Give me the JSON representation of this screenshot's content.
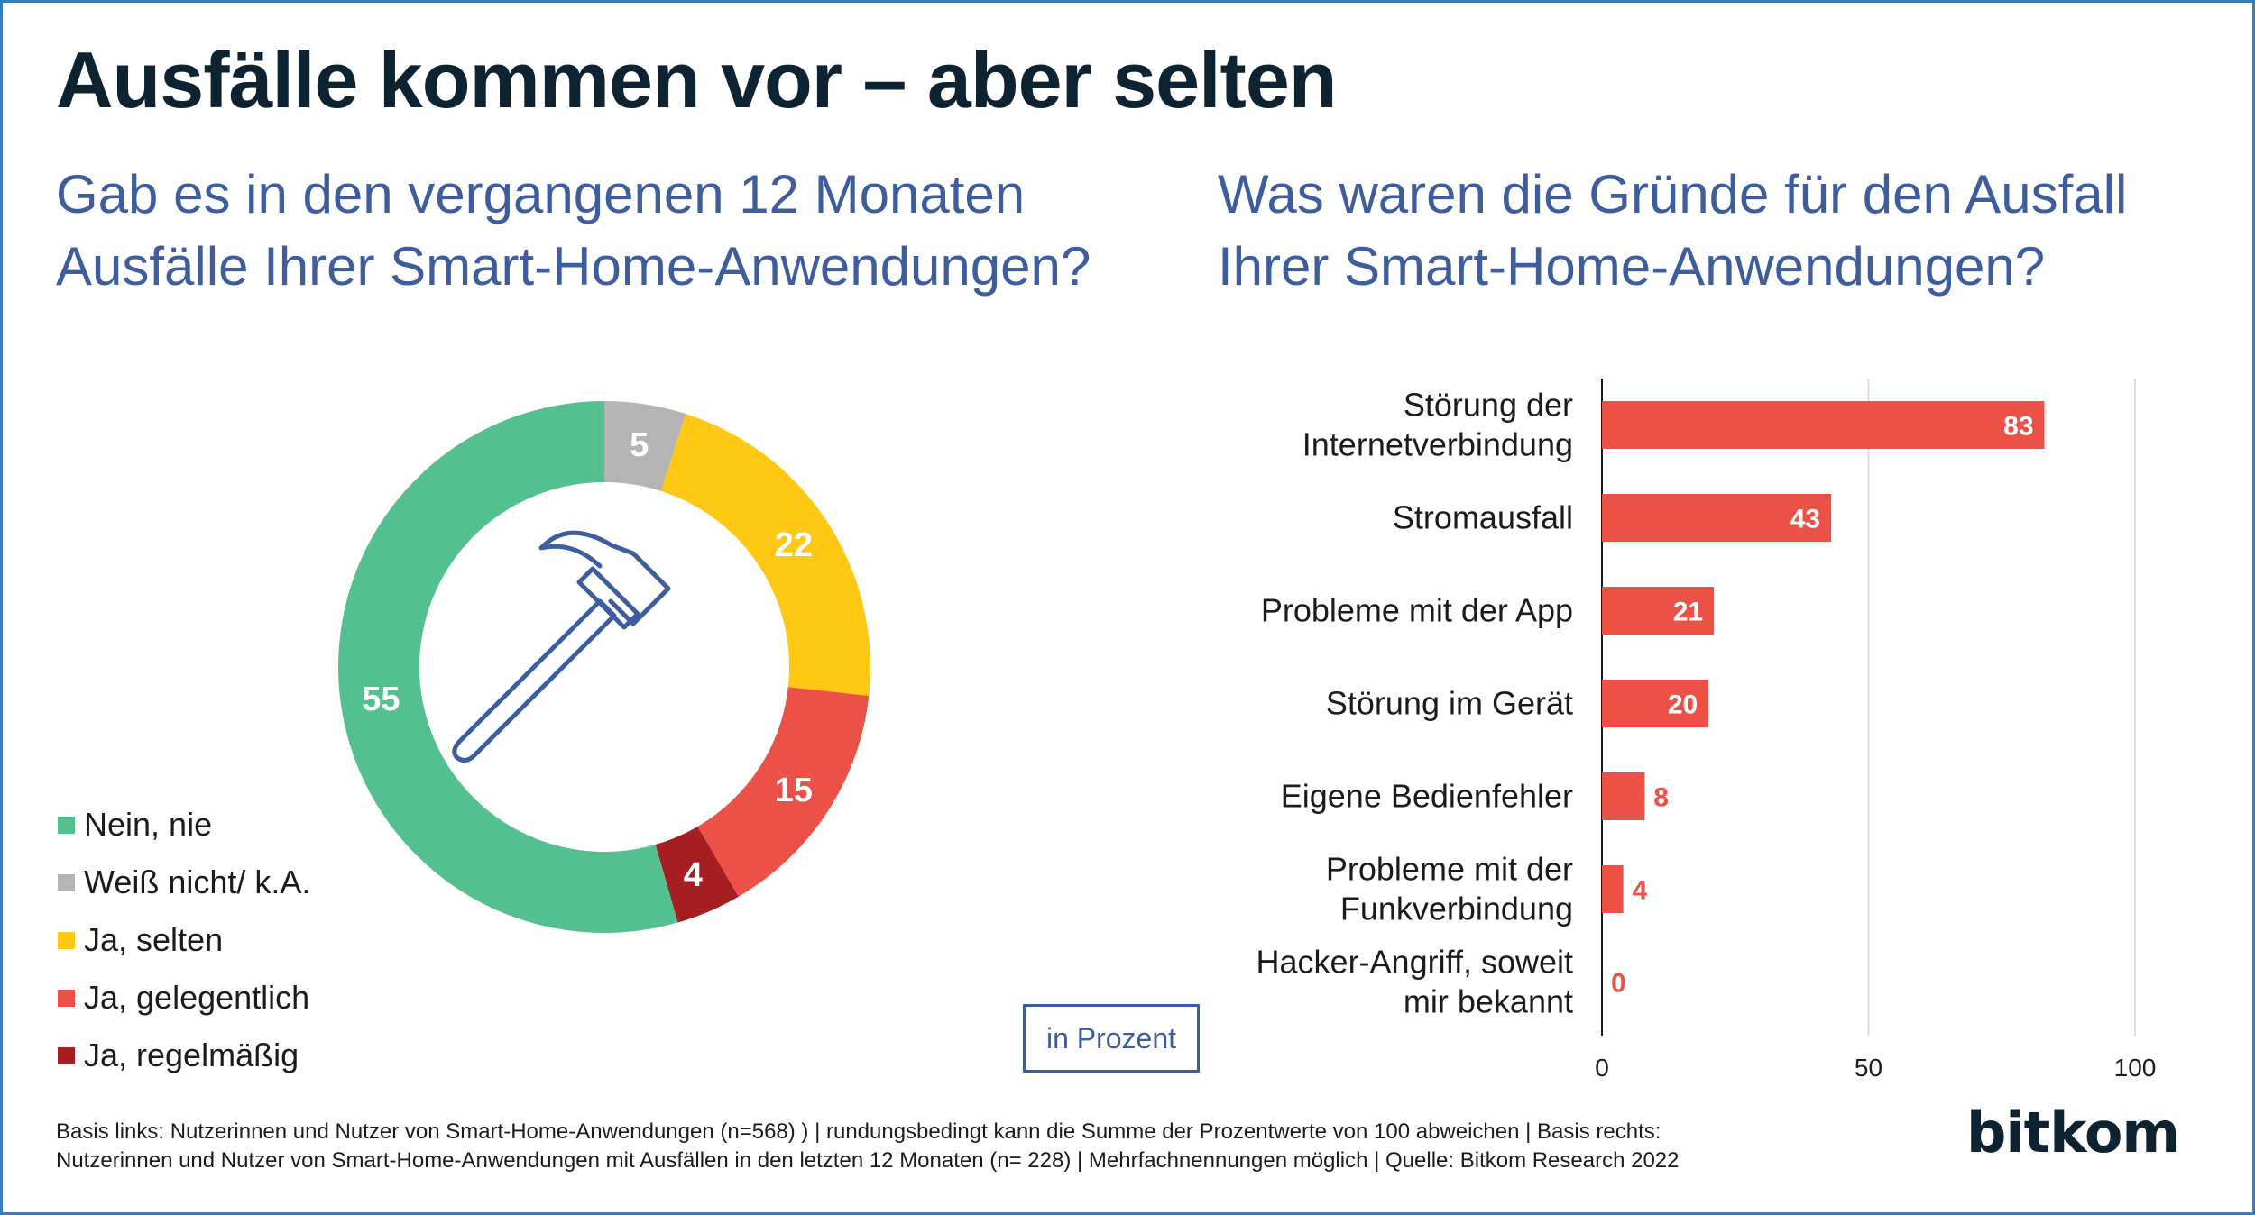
{
  "title": "Ausfälle kommen vor – aber selten",
  "left_question": [
    "Gab es in den vergangenen 12 Monaten",
    "Ausfälle Ihrer Smart-Home-Anwendungen?"
  ],
  "right_question": [
    "Was waren die Gründe für den Ausfall",
    "Ihrer Smart-Home-Anwendungen?"
  ],
  "unit_label": "in Prozent",
  "footnote": [
    "Basis links: Nutzerinnen und Nutzer von Smart-Home-Anwendungen (n=568) ) | rundungsbedingt kann die Summe der Prozentwerte von 100 abweichen | Basis rechts:",
    "Nutzerinnen und Nutzer von Smart-Home-Anwendungen mit Ausfällen in den letzten 12 Monaten (n= 228) | Mehrfachnennungen möglich | Quelle: Bitkom Research 2022"
  ],
  "brand": "bitkom",
  "center_icon": "hammer-icon",
  "colors": {
    "title": "#0e2332",
    "question": "#3e5d9e",
    "bar": "#ec5148",
    "green": "#55c08f",
    "grey": "#b4b4b4",
    "yellow": "#fec814",
    "red": "#ec5148",
    "darkred": "#a41e22",
    "frame": "#3a7bbf"
  },
  "chart_data": [
    {
      "type": "pie",
      "variant": "donut",
      "title": "Gab es in den vergangenen 12 Monaten Ausfälle Ihrer Smart-Home-Anwendungen?",
      "legend_position": "bottom-left",
      "slices": [
        {
          "label": "Weiß nicht/ k.A.",
          "value": 5,
          "color": "#b4b4b4"
        },
        {
          "label": "Ja, selten",
          "value": 22,
          "color": "#fec814"
        },
        {
          "label": "Ja, gelegentlich",
          "value": 15,
          "color": "#ec5148"
        },
        {
          "label": "Ja, regelmäßig",
          "value": 4,
          "color": "#a41e22"
        },
        {
          "label": "Nein, nie",
          "value": 55,
          "color": "#55c08f"
        }
      ],
      "legend_order": [
        "Nein, nie",
        "Weiß nicht/ k.A.",
        "Ja, selten",
        "Ja, gelegentlich",
        "Ja, regelmäßig"
      ]
    },
    {
      "type": "bar",
      "orientation": "horizontal",
      "title": "Was waren die Gründe für den Ausfall Ihrer Smart-Home-Anwendungen?",
      "categories": [
        [
          "Störung der",
          "Internetverbindung"
        ],
        [
          "Stromausfall"
        ],
        [
          "Probleme mit der App"
        ],
        [
          "Störung im Gerät"
        ],
        [
          "Eigene Bedienfehler"
        ],
        [
          "Probleme mit der",
          "Funkverbindung"
        ],
        [
          "Hacker-Angriff, soweit",
          "mir bekannt"
        ]
      ],
      "values": [
        83,
        43,
        21,
        20,
        8,
        4,
        0
      ],
      "xlim": [
        0,
        100
      ],
      "xticks": [
        0,
        50,
        100
      ],
      "grid": true
    }
  ]
}
